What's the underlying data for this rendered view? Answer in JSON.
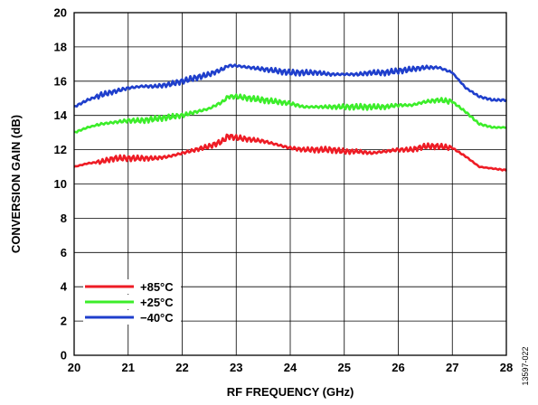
{
  "chart_data": {
    "type": "line",
    "xlabel": "RF FREQUENCY (GHz)",
    "ylabel": "CONVERSION GAIN (dB)",
    "xlim": [
      20,
      28
    ],
    "ylim": [
      0,
      20
    ],
    "x_ticks": [
      "20",
      "21",
      "22",
      "23",
      "24",
      "25",
      "26",
      "27",
      "28"
    ],
    "y_ticks": [
      "0",
      "2",
      "4",
      "6",
      "8",
      "10",
      "12",
      "14",
      "16",
      "18",
      "20"
    ],
    "grid": true,
    "legend_position": "bottom-left",
    "figure_id": "13597-022",
    "series": [
      {
        "name": "+85°C",
        "color": "#ee1c25",
        "x": [
          20.0,
          20.25,
          20.5,
          20.75,
          21.0,
          21.25,
          21.5,
          21.75,
          22.0,
          22.25,
          22.5,
          22.75,
          22.85,
          23.0,
          23.25,
          23.5,
          23.75,
          24.0,
          24.25,
          24.5,
          24.75,
          25.0,
          25.25,
          25.5,
          25.75,
          26.0,
          26.25,
          26.5,
          26.75,
          27.0,
          27.25,
          27.5,
          27.75,
          28.0
        ],
        "y": [
          11.0,
          11.2,
          11.3,
          11.5,
          11.5,
          11.5,
          11.5,
          11.6,
          11.8,
          12.0,
          12.2,
          12.5,
          12.8,
          12.7,
          12.6,
          12.5,
          12.3,
          12.1,
          12.0,
          12.0,
          12.0,
          11.9,
          11.9,
          11.8,
          11.9,
          12.0,
          12.0,
          12.2,
          12.2,
          12.1,
          11.6,
          11.0,
          10.9,
          10.8
        ]
      },
      {
        "name": "+25°C",
        "color": "#3ced2a",
        "x": [
          20.0,
          20.25,
          20.5,
          20.75,
          21.0,
          21.25,
          21.5,
          21.75,
          22.0,
          22.25,
          22.5,
          22.75,
          22.85,
          23.0,
          23.25,
          23.5,
          23.75,
          24.0,
          24.25,
          24.5,
          24.75,
          25.0,
          25.25,
          25.5,
          25.75,
          26.0,
          26.25,
          26.5,
          26.75,
          27.0,
          27.25,
          27.5,
          27.75,
          28.0
        ],
        "y": [
          13.0,
          13.3,
          13.5,
          13.6,
          13.7,
          13.7,
          13.8,
          13.9,
          14.0,
          14.2,
          14.4,
          14.8,
          15.1,
          15.1,
          15.0,
          14.9,
          14.8,
          14.7,
          14.5,
          14.5,
          14.5,
          14.5,
          14.5,
          14.5,
          14.5,
          14.6,
          14.6,
          14.8,
          14.9,
          14.8,
          14.2,
          13.5,
          13.3,
          13.3
        ]
      },
      {
        "name": "−40°C",
        "color": "#1f3fcc",
        "x": [
          20.0,
          20.25,
          20.5,
          20.75,
          21.0,
          21.25,
          21.5,
          21.75,
          22.0,
          22.25,
          22.5,
          22.75,
          22.85,
          23.0,
          23.25,
          23.5,
          23.75,
          24.0,
          24.25,
          24.5,
          24.75,
          25.0,
          25.25,
          25.5,
          25.75,
          26.0,
          26.25,
          26.5,
          26.75,
          27.0,
          27.25,
          27.5,
          27.75,
          28.0
        ],
        "y": [
          14.5,
          14.9,
          15.2,
          15.4,
          15.6,
          15.7,
          15.7,
          15.8,
          16.0,
          16.2,
          16.4,
          16.7,
          16.9,
          16.9,
          16.8,
          16.7,
          16.6,
          16.5,
          16.5,
          16.5,
          16.4,
          16.4,
          16.4,
          16.5,
          16.5,
          16.6,
          16.7,
          16.8,
          16.8,
          16.5,
          15.6,
          15.1,
          14.9,
          14.9
        ]
      }
    ]
  }
}
